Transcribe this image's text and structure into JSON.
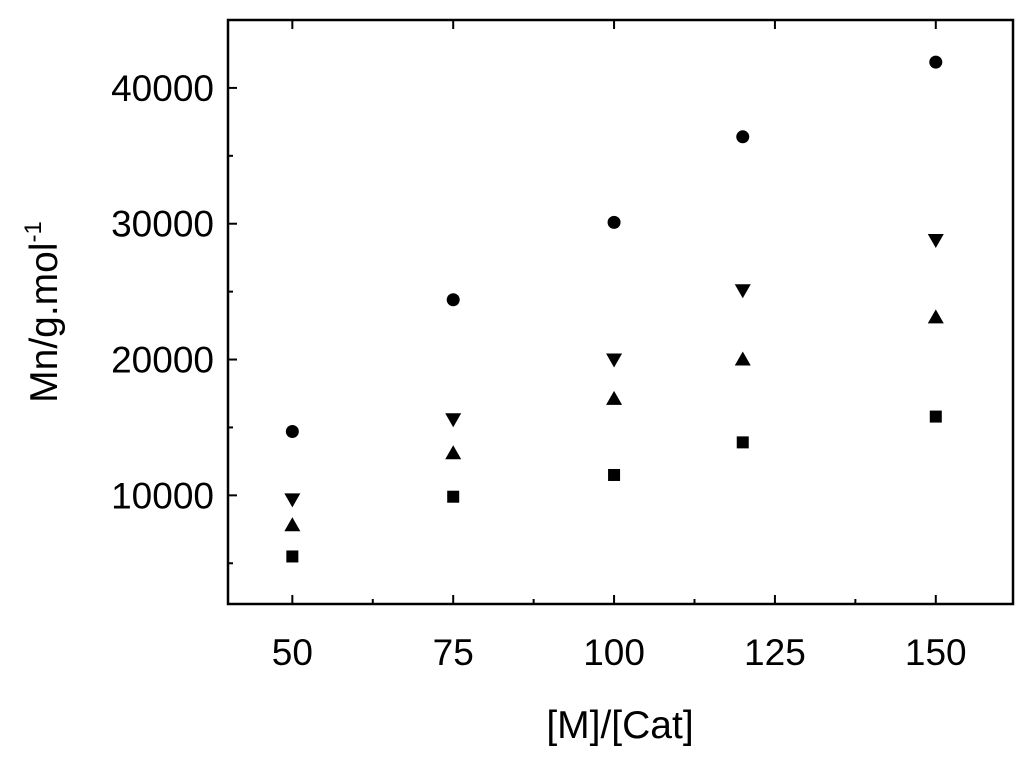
{
  "chart_data": {
    "type": "scatter",
    "title": "",
    "xlabel": "[M]/[Cat]",
    "ylabel_main": "Mn/g.mol",
    "ylabel_sup": "-1",
    "xlim": [
      40,
      162
    ],
    "ylim": [
      2000,
      45000
    ],
    "xticks": [
      50,
      75,
      100,
      125,
      150
    ],
    "xtick_labels": [
      "50",
      "75",
      "100",
      "125",
      "150"
    ],
    "yticks": [
      10000,
      20000,
      30000,
      40000
    ],
    "ytick_labels": [
      "10000",
      "20000",
      "30000",
      "40000"
    ],
    "grid": false,
    "series": [
      {
        "marker": "circle",
        "x": [
          50,
          75,
          100,
          120,
          150
        ],
        "y": [
          14700,
          24400,
          30100,
          36400,
          41900
        ]
      },
      {
        "marker": "triangle-down",
        "x": [
          50,
          75,
          100,
          120,
          150
        ],
        "y": [
          9700,
          15600,
          20000,
          25100,
          28800
        ]
      },
      {
        "marker": "triangle-up",
        "x": [
          50,
          75,
          100,
          120,
          150
        ],
        "y": [
          7800,
          13100,
          17100,
          20000,
          23100
        ]
      },
      {
        "marker": "square",
        "x": [
          50,
          75,
          100,
          120,
          150
        ],
        "y": [
          5500,
          9900,
          11500,
          13900,
          15800
        ]
      }
    ],
    "colors": {
      "marker": "#000000",
      "axis": "#000000",
      "background": "#ffffff"
    }
  }
}
